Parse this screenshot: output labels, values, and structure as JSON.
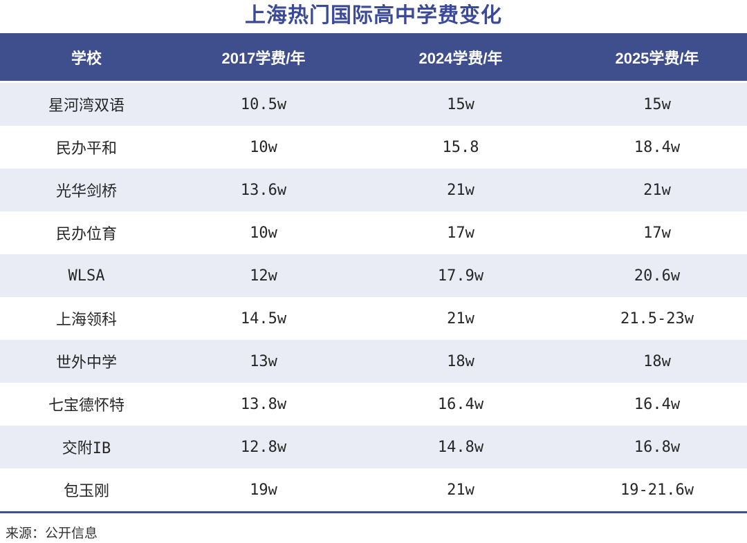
{
  "title": "上海热门国际高中学费变化",
  "source": "来源：公开信息",
  "colors": {
    "title_text": "#3a4a99",
    "header_bg": "#3f4e8c",
    "header_text": "#ffffff",
    "stripe_row_bg": "#e9ecf5",
    "body_text": "#262626",
    "divider": "#3f4e8c"
  },
  "chart_data": {
    "type": "table",
    "title": "上海热门国际高中学费变化",
    "columns": [
      "学校",
      "2017学费/年",
      "2024学费/年",
      "2025学费/年"
    ],
    "rows": [
      [
        "星河湾双语",
        "10.5w",
        "15w",
        "15w"
      ],
      [
        "民办平和",
        "10w",
        "15.8",
        "18.4w"
      ],
      [
        "光华剑桥",
        "13.6w",
        "21w",
        "21w"
      ],
      [
        "民办位育",
        "10w",
        "17w",
        "17w"
      ],
      [
        "WLSA",
        "12w",
        "17.9w",
        "20.6w"
      ],
      [
        "上海领科",
        "14.5w",
        "21w",
        "21.5-23w"
      ],
      [
        "世外中学",
        "13w",
        "18w",
        "18w"
      ],
      [
        "七宝德怀特",
        "13.8w",
        "16.4w",
        "16.4w"
      ],
      [
        "交附IB",
        "12.8w",
        "14.8w",
        "16.8w"
      ],
      [
        "包玉刚",
        "19w",
        "21w",
        "19-21.6w"
      ]
    ],
    "source": "来源：公开信息",
    "layout": {
      "striped": true,
      "first_row_striped": true,
      "column_alignment": "center"
    }
  }
}
